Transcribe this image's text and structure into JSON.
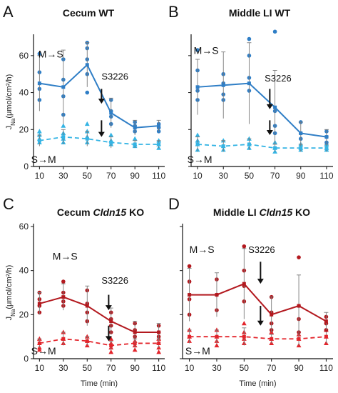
{
  "chart_data": [
    {
      "type": "line",
      "panel": "A",
      "title_parts": [
        {
          "text": "Cecum WT",
          "italic": false
        }
      ],
      "xlabel": "",
      "ylabel": "J_Na (μmol/cm²/h)",
      "ylabel_main": "J",
      "ylabel_sub": "Na",
      "ylabel_rest": "(μmol/cm²/h)",
      "xlim": [
        5,
        115
      ],
      "ylim": [
        0,
        70
      ],
      "x_ticks": [
        10,
        30,
        50,
        70,
        90,
        110
      ],
      "x_tick_labels": [
        "10",
        "30",
        "50",
        "70",
        "90",
        "110"
      ],
      "y_ticks": [
        0,
        20,
        40,
        60
      ],
      "y_tick_labels": [
        "0",
        "20",
        "40",
        "60"
      ],
      "show_y_tick_labels": true,
      "x": [
        10,
        30,
        50,
        70,
        90,
        110
      ],
      "series": [
        {
          "label": "M→S",
          "color": "#2f7ec6",
          "marker": "circle",
          "dashed": false,
          "values": [
            45,
            43,
            55,
            29,
            21,
            22
          ],
          "error": [
            15,
            20,
            12,
            8,
            4,
            3
          ],
          "points": [
            [
              10,
              61
            ],
            [
              10,
              51
            ],
            [
              10,
              42
            ],
            [
              10,
              36
            ],
            [
              30,
              58
            ],
            [
              30,
              47
            ],
            [
              30,
              38
            ],
            [
              30,
              28
            ],
            [
              50,
              67
            ],
            [
              50,
              64
            ],
            [
              50,
              58
            ],
            [
              50,
              50
            ],
            [
              50,
              40
            ],
            [
              70,
              36
            ],
            [
              70,
              30
            ],
            [
              70,
              27
            ],
            [
              70,
              23
            ],
            [
              90,
              24
            ],
            [
              90,
              22
            ],
            [
              90,
              19
            ],
            [
              110,
              23
            ],
            [
              110,
              21
            ],
            [
              110,
              19
            ]
          ]
        },
        {
          "label": "S→M",
          "color": "#34b4e4",
          "marker": "triangle",
          "dashed": true,
          "values": [
            14,
            16,
            15,
            13,
            12,
            12
          ],
          "error": [
            3,
            4,
            4,
            3,
            2,
            2
          ],
          "points": [
            [
              10,
              19
            ],
            [
              10,
              17
            ],
            [
              10,
              15
            ],
            [
              10,
              13
            ],
            [
              30,
              22
            ],
            [
              30,
              18
            ],
            [
              30,
              15
            ],
            [
              30,
              13
            ],
            [
              50,
              23
            ],
            [
              50,
              19
            ],
            [
              50,
              16
            ],
            [
              50,
              13
            ],
            [
              70,
              17
            ],
            [
              70,
              14
            ],
            [
              70,
              12
            ],
            [
              90,
              15
            ],
            [
              90,
              12
            ],
            [
              90,
              11
            ],
            [
              110,
              14
            ],
            [
              110,
              12
            ],
            [
              110,
              10
            ]
          ]
        }
      ],
      "annotations": [
        {
          "text": "M→S",
          "x": 9,
          "y": 59
        },
        {
          "text": "S→M",
          "x": 3,
          "y": 2
        },
        {
          "text": "S3226",
          "x": 62,
          "y": 47
        }
      ],
      "arrows": [
        {
          "x": 62,
          "y_from": 42,
          "y_to": 34
        },
        {
          "x": 62,
          "y_from": 25,
          "y_to": 16
        }
      ]
    },
    {
      "type": "line",
      "panel": "B",
      "title_parts": [
        {
          "text": "Middle LI WT",
          "italic": false
        }
      ],
      "xlabel": "",
      "ylabel": "",
      "xlim": [
        5,
        115
      ],
      "ylim": [
        0,
        70
      ],
      "x_ticks": [
        10,
        30,
        50,
        70,
        90,
        110
      ],
      "x_tick_labels": [
        "10",
        "30",
        "50",
        "70",
        "90",
        "110"
      ],
      "y_ticks": [
        0,
        20,
        40,
        60
      ],
      "y_tick_labels": [],
      "show_y_tick_labels": false,
      "x": [
        10,
        30,
        50,
        70,
        90,
        110
      ],
      "series": [
        {
          "label": "M→S",
          "color": "#2f7ec6",
          "marker": "circle",
          "dashed": false,
          "values": [
            43,
            44,
            45,
            32,
            18,
            16
          ],
          "error": [
            15,
            18,
            22,
            20,
            6,
            4
          ],
          "points": [
            [
              10,
              63
            ],
            [
              10,
              52
            ],
            [
              10,
              41
            ],
            [
              10,
              36
            ],
            [
              30,
              50
            ],
            [
              30,
              45
            ],
            [
              30,
              39
            ],
            [
              30,
              36
            ],
            [
              50,
              69
            ],
            [
              50,
              60
            ],
            [
              50,
              48
            ],
            [
              50,
              41
            ],
            [
              70,
              73
            ],
            [
              70,
              30
            ],
            [
              70,
              22
            ],
            [
              70,
              18
            ],
            [
              90,
              24
            ],
            [
              90,
              18
            ],
            [
              90,
              15
            ],
            [
              110,
              19
            ],
            [
              110,
              16
            ],
            [
              110,
              13
            ]
          ]
        },
        {
          "label": "S→M",
          "color": "#34b4e4",
          "marker": "triangle",
          "dashed": true,
          "values": [
            12,
            11,
            12,
            10,
            10,
            10
          ],
          "error": [
            4,
            3,
            3,
            2,
            2,
            2
          ],
          "points": [
            [
              10,
              17
            ],
            [
              10,
              14
            ],
            [
              10,
              12
            ],
            [
              10,
              9
            ],
            [
              30,
              14
            ],
            [
              30,
              11
            ],
            [
              30,
              9
            ],
            [
              50,
              15
            ],
            [
              50,
              12
            ],
            [
              50,
              10
            ],
            [
              70,
              13
            ],
            [
              70,
              10
            ],
            [
              70,
              8
            ],
            [
              90,
              12
            ],
            [
              90,
              10
            ],
            [
              90,
              9
            ],
            [
              110,
              12
            ],
            [
              110,
              10
            ],
            [
              110,
              9
            ]
          ]
        }
      ],
      "annotations": [
        {
          "text": "M→S",
          "x": 7,
          "y": 61
        },
        {
          "text": "S→M",
          "x": 2,
          "y": 2
        },
        {
          "text": "S3226",
          "x": 62,
          "y": 46
        }
      ],
      "arrows": [
        {
          "x": 66,
          "y_from": 42,
          "y_to": 31
        },
        {
          "x": 66,
          "y_from": 25,
          "y_to": 17
        }
      ]
    },
    {
      "type": "line",
      "panel": "C",
      "title_parts": [
        {
          "text": "Cecum ",
          "italic": false
        },
        {
          "text": "Cldn15",
          "italic": true
        },
        {
          "text": " KO",
          "italic": false
        }
      ],
      "xlabel": "Time (min)",
      "ylabel": "J_Na (μmol/cm²/h)",
      "ylabel_main": "J",
      "ylabel_sub": "Na",
      "ylabel_rest": "(μmol/cm²/h)",
      "xlim": [
        5,
        115
      ],
      "ylim": [
        0,
        60
      ],
      "x_ticks": [
        10,
        30,
        50,
        70,
        90,
        110
      ],
      "x_tick_labels": [
        "10",
        "30",
        "50",
        "70",
        "90",
        "110"
      ],
      "y_ticks": [
        0,
        20,
        40,
        60
      ],
      "y_tick_labels": [
        "0",
        "20",
        "40",
        "60"
      ],
      "show_y_tick_labels": true,
      "x": [
        10,
        30,
        50,
        70,
        90,
        110
      ],
      "series": [
        {
          "label": "M→S",
          "color": "#b3191f",
          "marker": "circle",
          "dashed": false,
          "values": [
            25,
            28,
            24,
            17,
            12,
            12
          ],
          "error": [
            5,
            6,
            9,
            6,
            5,
            4
          ],
          "points": [
            [
              10,
              30
            ],
            [
              10,
              27
            ],
            [
              10,
              24
            ],
            [
              10,
              21
            ],
            [
              30,
              35
            ],
            [
              30,
              30
            ],
            [
              30,
              26
            ],
            [
              30,
              24
            ],
            [
              50,
              31
            ],
            [
              50,
              25
            ],
            [
              50,
              21
            ],
            [
              50,
              17
            ],
            [
              70,
              21
            ],
            [
              70,
              18
            ],
            [
              70,
              15
            ],
            [
              70,
              12
            ],
            [
              90,
              16
            ],
            [
              90,
              13
            ],
            [
              90,
              10
            ],
            [
              110,
              15
            ],
            [
              110,
              12
            ],
            [
              110,
              10
            ]
          ]
        },
        {
          "label": "S→M",
          "color": "#e3242b",
          "marker": "triangle",
          "dashed": true,
          "values": [
            7,
            9,
            8,
            6,
            7,
            7
          ],
          "error": [
            2,
            3,
            2,
            2,
            2,
            2
          ],
          "points": [
            [
              10,
              9
            ],
            [
              10,
              7
            ],
            [
              10,
              5
            ],
            [
              10,
              4
            ],
            [
              30,
              12
            ],
            [
              30,
              9
            ],
            [
              30,
              7
            ],
            [
              50,
              10
            ],
            [
              50,
              8
            ],
            [
              50,
              6
            ],
            [
              70,
              9
            ],
            [
              70,
              7
            ],
            [
              70,
              5
            ],
            [
              70,
              3
            ],
            [
              90,
              8
            ],
            [
              90,
              6
            ],
            [
              90,
              4
            ],
            [
              110,
              9
            ],
            [
              110,
              7
            ],
            [
              110,
              5
            ],
            [
              110,
              3
            ]
          ]
        }
      ],
      "annotations": [
        {
          "text": "M→S",
          "x": 21,
          "y": 45
        },
        {
          "text": "S→M",
          "x": 3,
          "y": 2
        },
        {
          "text": "S3226",
          "x": 62,
          "y": 34
        }
      ],
      "arrows": [
        {
          "x": 68,
          "y_from": 29,
          "y_to": 22
        },
        {
          "x": 68,
          "y_from": 15,
          "y_to": 8
        }
      ]
    },
    {
      "type": "line",
      "panel": "D",
      "title_parts": [
        {
          "text": "Middle LI ",
          "italic": false
        },
        {
          "text": "Cldn15",
          "italic": true
        },
        {
          "text": " KO",
          "italic": false
        }
      ],
      "xlabel": "Time (min)",
      "ylabel": "",
      "xlim": [
        5,
        115
      ],
      "ylim": [
        0,
        60
      ],
      "x_ticks": [
        10,
        30,
        50,
        70,
        90,
        110
      ],
      "x_tick_labels": [
        "10",
        "30",
        "50",
        "70",
        "90",
        "110"
      ],
      "y_ticks": [
        0,
        20,
        40,
        60
      ],
      "y_tick_labels": [],
      "show_y_tick_labels": false,
      "x": [
        10,
        30,
        50,
        70,
        90,
        110
      ],
      "series": [
        {
          "label": "M→S",
          "color": "#b3191f",
          "marker": "circle",
          "dashed": false,
          "values": [
            29,
            29,
            34,
            20,
            24,
            17
          ],
          "error": [
            12,
            10,
            16,
            8,
            14,
            4
          ],
          "points": [
            [
              10,
              42
            ],
            [
              10,
              35
            ],
            [
              10,
              27
            ],
            [
              10,
              20
            ],
            [
              30,
              36
            ],
            [
              30,
              29
            ],
            [
              30,
              22
            ],
            [
              50,
              51
            ],
            [
              50,
              40
            ],
            [
              50,
              33
            ],
            [
              50,
              26
            ],
            [
              70,
              28
            ],
            [
              70,
              21
            ],
            [
              70,
              16
            ],
            [
              70,
              13
            ],
            [
              90,
              46
            ],
            [
              90,
              24
            ],
            [
              90,
              18
            ],
            [
              90,
              12
            ],
            [
              110,
              19
            ],
            [
              110,
              16
            ],
            [
              110,
              13
            ]
          ]
        },
        {
          "label": "S→M",
          "color": "#e3242b",
          "marker": "triangle",
          "dashed": true,
          "values": [
            10,
            10,
            10,
            9,
            9,
            10
          ],
          "error": [
            3,
            3,
            4,
            2,
            3,
            3
          ],
          "points": [
            [
              10,
              13
            ],
            [
              10,
              10
            ],
            [
              10,
              8
            ],
            [
              30,
              13
            ],
            [
              30,
              10
            ],
            [
              30,
              8
            ],
            [
              30,
              6
            ],
            [
              50,
              16
            ],
            [
              50,
              12
            ],
            [
              50,
              9
            ],
            [
              50,
              7
            ],
            [
              70,
              12
            ],
            [
              70,
              9
            ],
            [
              70,
              7
            ],
            [
              90,
              11
            ],
            [
              90,
              9
            ],
            [
              90,
              6
            ],
            [
              110,
              13
            ],
            [
              110,
              10
            ],
            [
              110,
              7
            ]
          ]
        }
      ],
      "annotations": [
        {
          "text": "M→S",
          "x": 10,
          "y": 48
        },
        {
          "text": "S→M",
          "x": 7,
          "y": 2
        },
        {
          "text": "S3226",
          "x": 53,
          "y": 48
        }
      ],
      "arrows": [
        {
          "x": 62,
          "y_from": 44,
          "y_to": 34
        },
        {
          "x": 62,
          "y_from": 24,
          "y_to": 15
        }
      ]
    }
  ]
}
